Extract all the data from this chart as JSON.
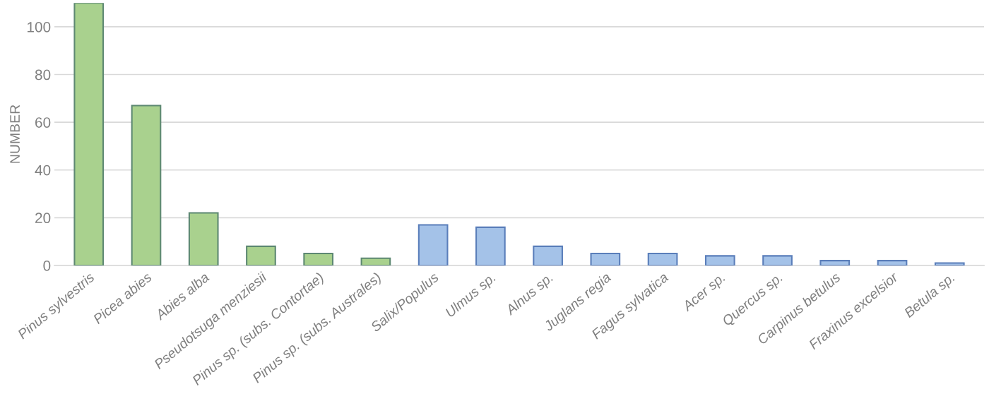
{
  "chart_data": {
    "type": "bar",
    "ylabel": "NUMBER",
    "categories": [
      "Pinus sylvestris",
      "Picea abies",
      "Abies alba",
      "Pseudotsuga menziesii",
      "Pinus sp. (subs. Contortae)",
      "Pinus sp. (subs. Australes)",
      "Salix/Populus",
      "Ulmus sp.",
      "Alnus sp.",
      "Juglans regia",
      "Fagus sylvatica",
      "Acer sp.",
      "Quercus sp.",
      "Carpinus betulus",
      "Fraxinus excelsior",
      "Betula sp."
    ],
    "values": [
      110,
      67,
      22,
      8,
      5,
      3,
      17,
      16,
      8,
      5,
      5,
      4,
      4,
      2,
      2,
      1
    ],
    "colors": [
      "#a9d18e",
      "#a9d18e",
      "#a9d18e",
      "#a9d18e",
      "#a9d18e",
      "#a9d18e",
      "#a4c2e8",
      "#a4c2e8",
      "#a4c2e8",
      "#a4c2e8",
      "#a4c2e8",
      "#a4c2e8",
      "#a4c2e8",
      "#a4c2e8",
      "#a4c2e8",
      "#a4c2e8"
    ],
    "ylim": [
      0,
      110
    ],
    "yticks": [
      0,
      20,
      40,
      60,
      80,
      100
    ],
    "grid": "y"
  }
}
